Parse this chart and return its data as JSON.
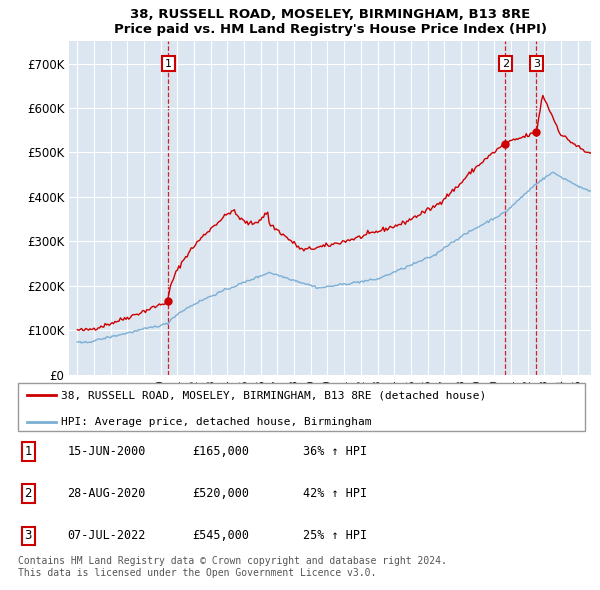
{
  "title": "38, RUSSELL ROAD, MOSELEY, BIRMINGHAM, B13 8RE",
  "subtitle": "Price paid vs. HM Land Registry's House Price Index (HPI)",
  "background_color": "#dce6f1",
  "plot_bg_color": "#dce6f1",
  "red_color": "#cc0000",
  "blue_color": "#7bafd4",
  "ylim": [
    0,
    750000
  ],
  "yticks": [
    0,
    100000,
    200000,
    300000,
    400000,
    500000,
    600000,
    700000
  ],
  "ytick_labels": [
    "£0",
    "£100K",
    "£200K",
    "£300K",
    "£400K",
    "£500K",
    "£600K",
    "£700K"
  ],
  "sale_info": [
    [
      "1",
      "15-JUN-2000",
      "£165,000",
      "36% ↑ HPI"
    ],
    [
      "2",
      "28-AUG-2020",
      "£520,000",
      "42% ↑ HPI"
    ],
    [
      "3",
      "07-JUL-2022",
      "£545,000",
      "25% ↑ HPI"
    ]
  ],
  "legend_labels": [
    "38, RUSSELL ROAD, MOSELEY, BIRMINGHAM, B13 8RE (detached house)",
    "HPI: Average price, detached house, Birmingham"
  ],
  "footnote": "Contains HM Land Registry data © Crown copyright and database right 2024.\nThis data is licensed under the Open Government Licence v3.0."
}
